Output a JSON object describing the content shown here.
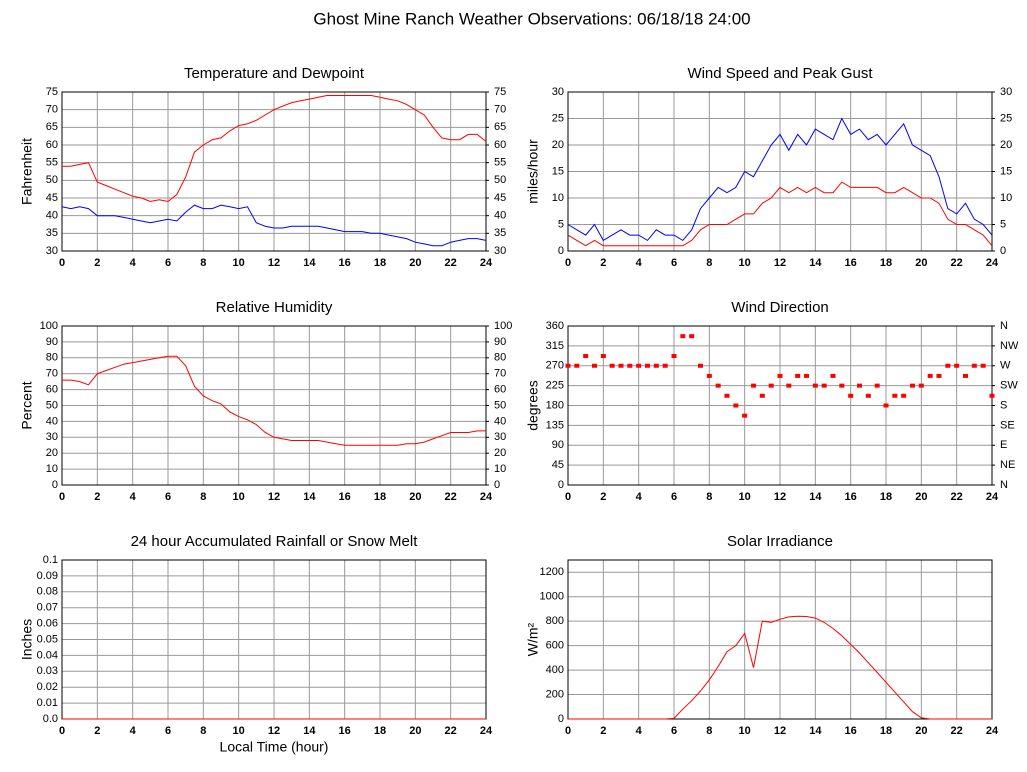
{
  "title": "Ghost Mine Ranch Weather Observations: 06/18/18 24:00",
  "chart_data": [
    {
      "type": "line",
      "title": "Temperature and Dewpoint",
      "ylabel": "Fahrenheit",
      "x": [
        0,
        0.5,
        1,
        1.5,
        2,
        2.5,
        3,
        3.5,
        4,
        4.5,
        5,
        5.5,
        6,
        6.5,
        7,
        7.5,
        8,
        8.5,
        9,
        9.5,
        10,
        10.5,
        11,
        11.5,
        12,
        12.5,
        13,
        13.5,
        14,
        14.5,
        15,
        15.5,
        16,
        16.5,
        17,
        17.5,
        18,
        18.5,
        19,
        19.5,
        20,
        20.5,
        21,
        21.5,
        22,
        22.5,
        23,
        23.5,
        24
      ],
      "series": [
        {
          "color": "#ff0000",
          "values": [
            54,
            54,
            54.5,
            55,
            49.5,
            48.5,
            47.5,
            46.5,
            45.5,
            45,
            44,
            44.5,
            44,
            46,
            51,
            58,
            60,
            61.5,
            62,
            64,
            65.5,
            66,
            67,
            68.5,
            70,
            71,
            72,
            72.5,
            73,
            73.5,
            74,
            74,
            74,
            74,
            74,
            74,
            73.5,
            73,
            72.5,
            71.5,
            70,
            68.5,
            65,
            62,
            61.5,
            61.5,
            63,
            63,
            61
          ]
        },
        {
          "color": "#0000ff",
          "values": [
            42.5,
            42,
            42.5,
            42,
            40,
            40,
            40,
            39.5,
            39,
            38.5,
            38,
            38.5,
            39,
            38.5,
            41,
            43,
            42,
            42,
            43,
            42.5,
            42,
            42.5,
            38,
            37,
            36.5,
            36.5,
            37,
            37,
            37,
            37,
            36.5,
            36,
            35.5,
            35.5,
            35.5,
            35,
            35,
            34.5,
            34,
            33.5,
            32.5,
            32,
            31.5,
            31.5,
            32.5,
            33,
            33.5,
            33.5,
            33
          ]
        }
      ],
      "xlim": [
        0,
        24
      ],
      "xticks": [
        0,
        2,
        4,
        6,
        8,
        10,
        12,
        14,
        16,
        18,
        20,
        22,
        24
      ],
      "ylim": [
        30,
        75
      ],
      "yticks": [
        30,
        35,
        40,
        45,
        50,
        55,
        60,
        65,
        70,
        75
      ],
      "y2lim": [
        30,
        75
      ],
      "y2ticks": [
        30,
        35,
        40,
        45,
        50,
        55,
        60,
        65,
        70,
        75
      ],
      "grid": true
    },
    {
      "type": "line",
      "title": "Wind Speed and Peak Gust",
      "ylabel": "miles/hour",
      "x": [
        0,
        0.5,
        1,
        1.5,
        2,
        2.5,
        3,
        3.5,
        4,
        4.5,
        5,
        5.5,
        6,
        6.5,
        7,
        7.5,
        8,
        8.5,
        9,
        9.5,
        10,
        10.5,
        11,
        11.5,
        12,
        12.5,
        13,
        13.5,
        14,
        14.5,
        15,
        15.5,
        16,
        16.5,
        17,
        17.5,
        18,
        18.5,
        19,
        19.5,
        20,
        20.5,
        21,
        21.5,
        22,
        22.5,
        23,
        23.5,
        24
      ],
      "series": [
        {
          "color": "#0000ff",
          "values": [
            5,
            4,
            3,
            5,
            2,
            3,
            4,
            3,
            3,
            2,
            4,
            3,
            3,
            2,
            4,
            8,
            10,
            12,
            11,
            12,
            15,
            14,
            17,
            20,
            22,
            19,
            22,
            20,
            23,
            22,
            21,
            25,
            22,
            23,
            21,
            22,
            20,
            22,
            24,
            20,
            19,
            18,
            14,
            8,
            7,
            9,
            6,
            5,
            3
          ]
        },
        {
          "color": "#ff0000",
          "values": [
            3,
            2,
            1,
            2,
            1,
            1,
            1,
            1,
            1,
            1,
            1,
            1,
            1,
            1,
            2,
            4,
            5,
            5,
            5,
            6,
            7,
            7,
            9,
            10,
            12,
            11,
            12,
            11,
            12,
            11,
            11,
            13,
            12,
            12,
            12,
            12,
            11,
            11,
            12,
            11,
            10,
            10,
            9,
            6,
            5,
            5,
            4,
            3,
            1
          ]
        }
      ],
      "xlim": [
        0,
        24
      ],
      "xticks": [
        0,
        2,
        4,
        6,
        8,
        10,
        12,
        14,
        16,
        18,
        20,
        22,
        24
      ],
      "ylim": [
        0,
        30
      ],
      "yticks": [
        0,
        5,
        10,
        15,
        20,
        25,
        30
      ],
      "y2lim": [
        0,
        30
      ],
      "y2ticks": [
        0,
        5,
        10,
        15,
        20,
        25,
        30
      ],
      "grid": true
    },
    {
      "type": "line",
      "title": "Relative Humidity",
      "ylabel": "Percent",
      "x": [
        0,
        0.5,
        1,
        1.5,
        2,
        2.5,
        3,
        3.5,
        4,
        4.5,
        5,
        5.5,
        6,
        6.5,
        7,
        7.5,
        8,
        8.5,
        9,
        9.5,
        10,
        10.5,
        11,
        11.5,
        12,
        12.5,
        13,
        13.5,
        14,
        14.5,
        15,
        15.5,
        16,
        16.5,
        17,
        17.5,
        18,
        18.5,
        19,
        19.5,
        20,
        20.5,
        21,
        21.5,
        22,
        22.5,
        23,
        23.5,
        24
      ],
      "series": [
        {
          "color": "#ff0000",
          "values": [
            66,
            66,
            65,
            63,
            70,
            72,
            74,
            76,
            77,
            78,
            79,
            80,
            81,
            81,
            75,
            62,
            56,
            53,
            51,
            46,
            43,
            41,
            38,
            33,
            30,
            29,
            28,
            28,
            28,
            28,
            27,
            26,
            25,
            25,
            25,
            25,
            25,
            25,
            25,
            26,
            26,
            27,
            29,
            31,
            33,
            33,
            33,
            34,
            34
          ]
        }
      ],
      "xlim": [
        0,
        24
      ],
      "xticks": [
        0,
        2,
        4,
        6,
        8,
        10,
        12,
        14,
        16,
        18,
        20,
        22,
        24
      ],
      "ylim": [
        0,
        100
      ],
      "yticks": [
        0,
        10,
        20,
        30,
        40,
        50,
        60,
        70,
        80,
        90,
        100
      ],
      "y2lim": [
        0,
        100
      ],
      "y2ticks": [
        0,
        10,
        20,
        30,
        40,
        50,
        60,
        70,
        80,
        90,
        100
      ],
      "grid": true
    },
    {
      "type": "scatter",
      "title": "Wind Direction",
      "ylabel": "degrees",
      "x": [
        0,
        0.5,
        1,
        1.5,
        2,
        2.5,
        3,
        3.5,
        4,
        4.5,
        5,
        5.5,
        6,
        6.5,
        7,
        7.5,
        8,
        8.5,
        9,
        9.5,
        10,
        10.5,
        11,
        11.5,
        12,
        12.5,
        13,
        13.5,
        14,
        14.5,
        15,
        15.5,
        16,
        16.5,
        17,
        17.5,
        18,
        18.5,
        19,
        19.5,
        20,
        20.5,
        21,
        21.5,
        22,
        22.5,
        23,
        23.5,
        24
      ],
      "series": [
        {
          "color": "#ff0000",
          "values": [
            270,
            270,
            292,
            270,
            292,
            270,
            270,
            270,
            270,
            270,
            270,
            270,
            292,
            337,
            337,
            270,
            247,
            225,
            202,
            180,
            157,
            225,
            202,
            225,
            247,
            225,
            247,
            247,
            225,
            225,
            247,
            225,
            202,
            225,
            202,
            225,
            180,
            202,
            202,
            225,
            225,
            247,
            247,
            270,
            270,
            247,
            270,
            270,
            202
          ]
        }
      ],
      "xlim": [
        0,
        24
      ],
      "xticks": [
        0,
        2,
        4,
        6,
        8,
        10,
        12,
        14,
        16,
        18,
        20,
        22,
        24
      ],
      "ylim": [
        0,
        360
      ],
      "yticks": [
        0,
        45,
        90,
        135,
        180,
        225,
        270,
        315,
        360
      ],
      "y2lim": [
        0,
        360
      ],
      "y2ticks": [
        {
          "value": 0,
          "label": "N"
        },
        {
          "value": 45,
          "label": "NE"
        },
        {
          "value": 90,
          "label": "E"
        },
        {
          "value": 135,
          "label": "SE"
        },
        {
          "value": 180,
          "label": "S"
        },
        {
          "value": 225,
          "label": "SW"
        },
        {
          "value": 270,
          "label": "W"
        },
        {
          "value": 315,
          "label": "NW"
        },
        {
          "value": 360,
          "label": "N"
        }
      ],
      "grid": true
    },
    {
      "type": "line",
      "title": "24 hour Accumulated Rainfall or Snow Melt",
      "ylabel": "Inches",
      "xlabel": "Local Time (hour)",
      "x": [
        0,
        24
      ],
      "series": [
        {
          "color": "#ff0000",
          "values": [
            0,
            0
          ]
        }
      ],
      "xlim": [
        0,
        24
      ],
      "xticks": [
        0,
        2,
        4,
        6,
        8,
        10,
        12,
        14,
        16,
        18,
        20,
        22,
        24
      ],
      "ylim": [
        0,
        0.1
      ],
      "yticks": [
        {
          "value": 0,
          "label": "0.0"
        },
        0.01,
        0.02,
        0.03,
        0.04,
        0.05,
        0.06,
        0.07,
        0.08,
        0.09,
        0.1
      ],
      "grid": true
    },
    {
      "type": "line",
      "title": "Solar Irradiance",
      "ylabel": "W/m²",
      "x": [
        0,
        0.5,
        1,
        1.5,
        2,
        2.5,
        3,
        3.5,
        4,
        4.5,
        5,
        5.5,
        6,
        6.5,
        7,
        7.5,
        8,
        8.5,
        9,
        9.5,
        10,
        10.5,
        11,
        11.5,
        12,
        12.5,
        13,
        13.5,
        14,
        14.5,
        15,
        15.5,
        16,
        16.5,
        17,
        17.5,
        18,
        18.5,
        19,
        19.5,
        20,
        20.5,
        21,
        21.5,
        22,
        22.5,
        23,
        23.5,
        24
      ],
      "series": [
        {
          "color": "#ff0000",
          "values": [
            0,
            0,
            0,
            0,
            0,
            0,
            0,
            0,
            0,
            0,
            0,
            0,
            5,
            80,
            150,
            230,
            320,
            430,
            550,
            600,
            700,
            420,
            800,
            790,
            815,
            835,
            840,
            838,
            825,
            790,
            740,
            680,
            610,
            540,
            460,
            380,
            300,
            220,
            140,
            60,
            10,
            0,
            0,
            0,
            0,
            0,
            0,
            0,
            0
          ]
        }
      ],
      "xlim": [
        0,
        24
      ],
      "xticks": [
        0,
        2,
        4,
        6,
        8,
        10,
        12,
        14,
        16,
        18,
        20,
        22,
        24
      ],
      "ylim": [
        0,
        1300
      ],
      "yticks": [
        0,
        200,
        400,
        600,
        800,
        1000,
        1200
      ],
      "grid": true
    }
  ]
}
